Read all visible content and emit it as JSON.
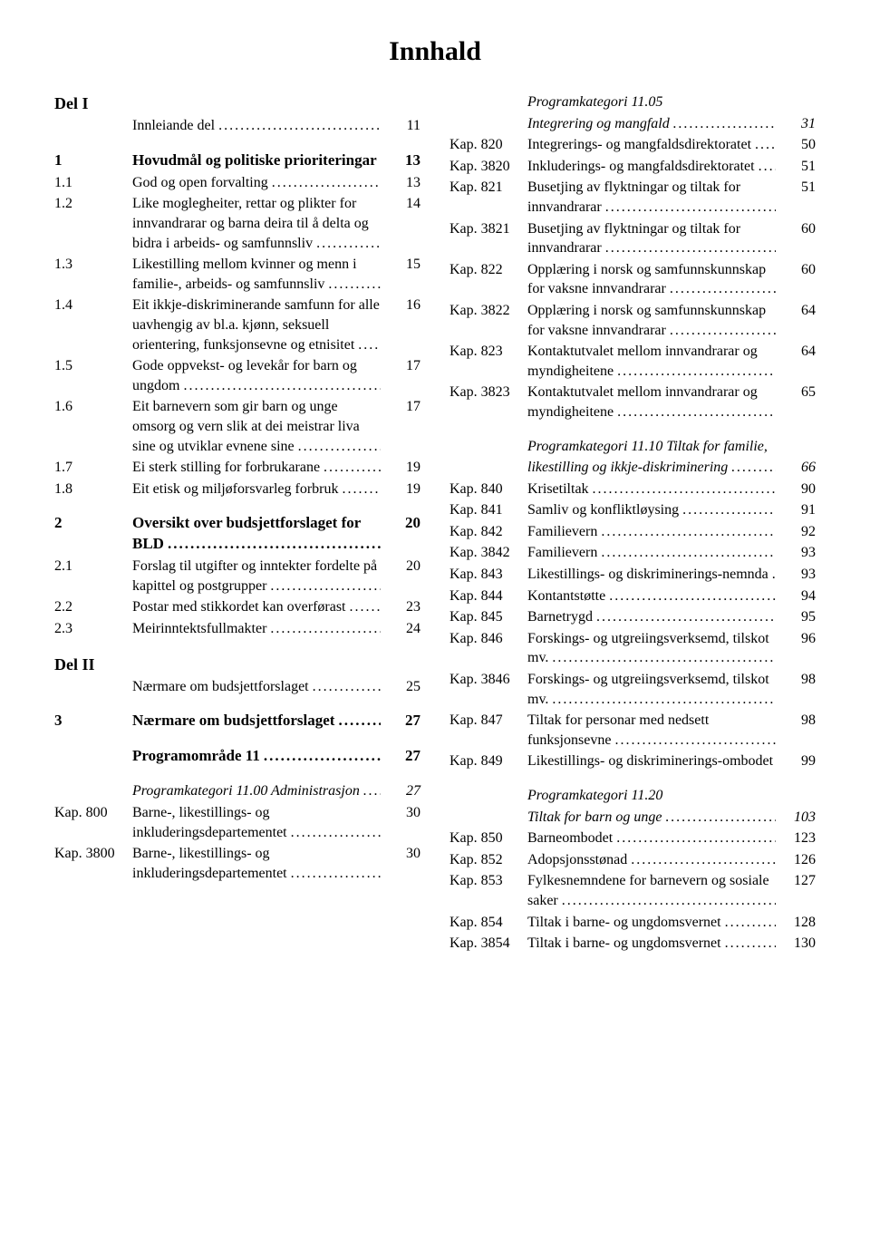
{
  "title": "Innhald",
  "leader_char": ".",
  "typography": {
    "body_font": "Times New Roman",
    "body_size_pt": 14,
    "title_size_pt": 24
  },
  "colors": {
    "background": "#ffffff",
    "text": "#000000"
  },
  "left": [
    {
      "label": "Del I",
      "text": "",
      "page": "",
      "classes": "bold f18",
      "no_leader": true
    },
    {
      "label": "",
      "text": "Innleiande del",
      "page": "11",
      "classes": ""
    },
    {
      "label": "1",
      "text": "Hovudmål og politiske prioriteringar",
      "page": "13",
      "classes": "bold f17",
      "gap": "md"
    },
    {
      "label": "1.1",
      "text": "God og open forvalting",
      "page": "13"
    },
    {
      "label": "1.2",
      "text": "Like moglegheiter, rettar og plikter for innvandrarar og barna deira til å delta og bidra i arbeids- og samfunnsliv",
      "page": "14"
    },
    {
      "label": "1.3",
      "text": "Likestilling mellom kvinner og menn i familie-, arbeids- og samfunnsliv",
      "page": "15"
    },
    {
      "label": "1.4",
      "text": "Eit ikkje-diskriminerande samfunn for alle uavhengig av bl.a. kjønn, seksuell orientering, funksjonsevne og etnisitet",
      "page": "16"
    },
    {
      "label": "1.5",
      "text": "Gode oppvekst- og levekår for barn og ungdom",
      "page": "17"
    },
    {
      "label": "1.6",
      "text": "Eit barnevern som gir barn og unge omsorg og vern slik at dei meistrar liva sine og utviklar evnene sine",
      "page": "17"
    },
    {
      "label": "1.7",
      "text": "Ei sterk stilling for forbrukarane",
      "page": "19"
    },
    {
      "label": "1.8",
      "text": "Eit etisk og miljøforsvarleg  forbruk",
      "page": "19"
    },
    {
      "label": "2",
      "text": "Oversikt over budsjettforslaget for BLD",
      "page": "20",
      "classes": "bold f17",
      "gap": "md"
    },
    {
      "label": "2.1",
      "text": "Forslag til utgifter og inntekter fordelte på kapittel og postgrupper",
      "page": "20"
    },
    {
      "label": "2.2",
      "text": "Postar med stikkordet kan overførast",
      "page": "23"
    },
    {
      "label": "2.3",
      "text": "Meirinntektsfullmakter",
      "page": "24"
    },
    {
      "label": "Del II",
      "text": "",
      "page": "",
      "classes": "bold f18",
      "gap": "md",
      "no_leader": true
    },
    {
      "label": "",
      "text": "Nærmare om budsjettforslaget",
      "page": "25"
    },
    {
      "label": "3",
      "text": "Nærmare om budsjettforslaget",
      "page": "27",
      "classes": "bold f17",
      "gap": "md"
    },
    {
      "label": "",
      "text": "Programområde 11",
      "page": "27",
      "classes": "bold f17",
      "gap": "md"
    },
    {
      "label": "",
      "text": "Programkategori 11.00 Administrasjon",
      "page": "27",
      "classes": "italic",
      "gap": "md"
    },
    {
      "label": "Kap. 800",
      "text": "Barne-, likestillings- og inkluderingsdepartementet",
      "page": "30"
    },
    {
      "label": "Kap. 3800",
      "text": "Barne-, likestillings- og inkluderingsdepartementet",
      "page": "30"
    }
  ],
  "right": [
    {
      "label": "",
      "text": "Programkategori 11.05",
      "page": "",
      "classes": "italic",
      "no_leader": true
    },
    {
      "label": "",
      "text": "Integrering og mangfald",
      "page": "31",
      "classes": "italic"
    },
    {
      "label": "Kap. 820",
      "text": "Integrerings- og mangfaldsdirektoratet",
      "page": "50"
    },
    {
      "label": "Kap. 3820",
      "text": "Inkluderings- og mangfaldsdirektoratet",
      "page": "51"
    },
    {
      "label": "Kap. 821",
      "text": "Busetjing av flyktningar og tiltak for innvandrarar",
      "page": "51"
    },
    {
      "label": "Kap. 3821",
      "text": "Busetjing av flyktningar og tiltak for innvandrarar",
      "page": "60"
    },
    {
      "label": "Kap. 822",
      "text": "Opplæring i norsk og samfunnskunnskap for vaksne innvandrarar",
      "page": "60"
    },
    {
      "label": "Kap. 3822",
      "text": "Opplæring i norsk og  samfunnskunnskap for  vaksne innvandrarar",
      "page": "64"
    },
    {
      "label": "Kap. 823",
      "text": "Kontaktutvalet mellom innvandrarar og myndigheitene",
      "page": "64"
    },
    {
      "label": "Kap. 3823",
      "text": "Kontaktutvalet mellom innvandrarar og myndigheitene",
      "page": "65"
    },
    {
      "label": "",
      "text": "Programkategori 11.10 Tiltak for familie,",
      "page": "",
      "classes": "italic",
      "gap": "md",
      "no_leader": true
    },
    {
      "label": "",
      "text": "likestilling og ikkje-diskriminering",
      "page": "66",
      "classes": "italic"
    },
    {
      "label": "Kap. 840",
      "text": "Krisetiltak",
      "page": "90"
    },
    {
      "label": "Kap. 841",
      "text": "Samliv og konfliktløysing",
      "page": "91"
    },
    {
      "label": "Kap. 842",
      "text": "Familievern",
      "page": "92"
    },
    {
      "label": "Kap. 3842",
      "text": "Familievern",
      "page": "93"
    },
    {
      "label": "Kap. 843",
      "text": "Likestillings- og diskriminerings-nemnda",
      "page": "93"
    },
    {
      "label": "Kap. 844",
      "text": "Kontantstøtte",
      "page": "94"
    },
    {
      "label": "Kap. 845",
      "text": "Barnetrygd",
      "page": "95"
    },
    {
      "label": "Kap. 846",
      "text": "Forskings- og utgreiingsverksemd, tilskot mv.",
      "page": "96"
    },
    {
      "label": "Kap. 3846",
      "text": "Forskings- og utgreiingsverksemd, tilskot mv.",
      "page": "98"
    },
    {
      "label": "Kap. 847",
      "text": "Tiltak for personar med nedsett funksjonsevne",
      "page": "98"
    },
    {
      "label": "Kap. 849",
      "text": "Likestillings- og diskriminerings-ombodet",
      "page": "99"
    },
    {
      "label": "",
      "text": "Programkategori 11.20",
      "page": "",
      "classes": "italic",
      "gap": "md",
      "no_leader": true
    },
    {
      "label": "",
      "text": "Tiltak for barn og unge",
      "page": "103",
      "classes": "italic"
    },
    {
      "label": "Kap. 850",
      "text": "Barneombodet",
      "page": "123"
    },
    {
      "label": "Kap. 852",
      "text": "Adopsjonsstønad",
      "page": "126"
    },
    {
      "label": "Kap. 853",
      "text": "Fylkesnemndene for barnevern og sosiale saker",
      "page": "127"
    },
    {
      "label": "Kap. 854",
      "text": "Tiltak i barne- og ungdomsvernet",
      "page": "128"
    },
    {
      "label": "Kap. 3854",
      "text": "Tiltak i barne- og ungdomsvernet",
      "page": "130"
    }
  ]
}
